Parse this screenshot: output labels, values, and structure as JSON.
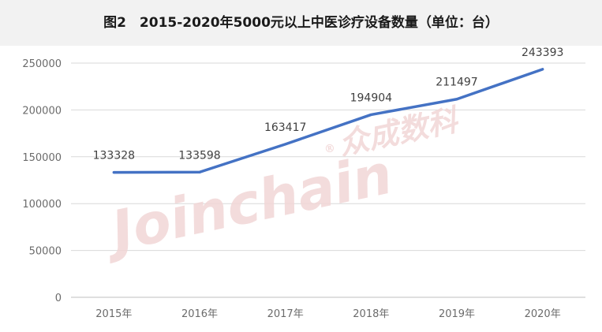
{
  "chart_data": {
    "type": "line",
    "title": "图2　2015-2020年5000元以上中医诊疗设备数量（单位：台）",
    "categories": [
      "2015年",
      "2016年",
      "2017年",
      "2018年",
      "2019年",
      "2020年"
    ],
    "series": [
      {
        "values": [
          133328,
          133598,
          163417,
          194904,
          211497,
          243393
        ],
        "color": "#4472c4"
      }
    ],
    "yticks": [
      "0",
      "50000",
      "100000",
      "150000",
      "200000",
      "250000"
    ],
    "ylim": [
      0,
      250000
    ],
    "grid": true,
    "legend": "none"
  },
  "watermark": {
    "text": "Joinchain",
    "reg": "®",
    "cn": "众成数科",
    "color": "#f1d6d6"
  }
}
